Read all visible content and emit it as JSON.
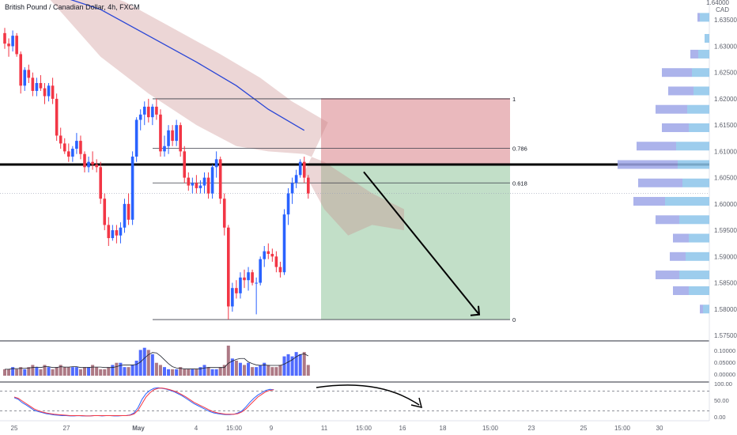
{
  "header": {
    "title": "British Pound / Canadian Dollar, 4h, FXCM",
    "top_price": "1.64000",
    "currency": "CAD"
  },
  "colors": {
    "bull": "#2962ff",
    "bear": "#f23645",
    "ma": "#2a46d6",
    "cloud": "#c98a8a",
    "stop_zone": "#d97f86",
    "target_zone": "#8fc49a",
    "volume_profile_left": "#9ea6e8",
    "volume_profile_right": "#8cc4ea",
    "stoch_k": "#2962ff",
    "stoch_d": "#f23645"
  },
  "chart_data": {
    "type": "candlestick",
    "symbol": "British Pound / Canadian Dollar",
    "timeframe": "4h",
    "source": "FXCM",
    "price_axis": {
      "range": [
        1.575,
        1.64
      ],
      "ticks": [
        "1.63500",
        "1.63000",
        "1.62500",
        "1.62000",
        "1.61500",
        "1.61000",
        "1.60500",
        "1.60000",
        "1.59500",
        "1.59000",
        "1.58500",
        "1.58000",
        "1.57500"
      ]
    },
    "time_axis": [
      "25",
      "27",
      "May",
      "4",
      "15:00",
      "9",
      "11",
      "15:00",
      "16",
      "18",
      "15:00",
      "23",
      "25",
      "15:00",
      "30"
    ],
    "candles": [
      [
        1.6325,
        1.6335,
        1.6295,
        1.6305
      ],
      [
        1.6305,
        1.6315,
        1.628,
        1.63
      ],
      [
        1.63,
        1.633,
        1.629,
        1.632
      ],
      [
        1.632,
        1.6325,
        1.628,
        1.6285
      ],
      [
        1.6285,
        1.629,
        1.621,
        1.6225
      ],
      [
        1.6225,
        1.626,
        1.6215,
        1.6255
      ],
      [
        1.6255,
        1.6265,
        1.623,
        1.624
      ],
      [
        1.624,
        1.625,
        1.6205,
        1.6215
      ],
      [
        1.6215,
        1.624,
        1.6205,
        1.623
      ],
      [
        1.623,
        1.6245,
        1.6215,
        1.622
      ],
      [
        1.622,
        1.623,
        1.619,
        1.6205
      ],
      [
        1.6205,
        1.623,
        1.6195,
        1.6225
      ],
      [
        1.6225,
        1.624,
        1.619,
        1.62
      ],
      [
        1.62,
        1.621,
        1.612,
        1.613
      ],
      [
        1.613,
        1.6145,
        1.6105,
        1.6115
      ],
      [
        1.6115,
        1.6125,
        1.6095,
        1.61
      ],
      [
        1.61,
        1.6115,
        1.608,
        1.609
      ],
      [
        1.609,
        1.611,
        1.608,
        1.6105
      ],
      [
        1.6105,
        1.6135,
        1.6095,
        1.612
      ],
      [
        1.612,
        1.613,
        1.6085,
        1.6095
      ],
      [
        1.6095,
        1.61,
        1.606,
        1.607
      ],
      [
        1.607,
        1.609,
        1.606,
        1.608
      ],
      [
        1.608,
        1.61,
        1.6065,
        1.6075
      ],
      [
        1.6075,
        1.6085,
        1.606,
        1.607
      ],
      [
        1.607,
        1.608,
        1.6,
        1.601
      ],
      [
        1.601,
        1.602,
        1.595,
        1.596
      ],
      [
        1.596,
        1.5975,
        1.592,
        1.5935
      ],
      [
        1.5935,
        1.596,
        1.593,
        1.595
      ],
      [
        1.595,
        1.596,
        1.5925,
        1.594
      ],
      [
        1.594,
        1.5965,
        1.5925,
        1.5955
      ],
      [
        1.5955,
        1.601,
        1.5945,
        1.6
      ],
      [
        1.6,
        1.602,
        1.596,
        1.597
      ],
      [
        1.597,
        1.61,
        1.596,
        1.609
      ],
      [
        1.609,
        1.6165,
        1.608,
        1.616
      ],
      [
        1.616,
        1.618,
        1.614,
        1.617
      ],
      [
        1.617,
        1.6195,
        1.615,
        1.6185
      ],
      [
        1.6185,
        1.62,
        1.6155,
        1.6165
      ],
      [
        1.6165,
        1.619,
        1.615,
        1.6185
      ],
      [
        1.6185,
        1.62,
        1.616,
        1.617
      ],
      [
        1.617,
        1.618,
        1.609,
        1.61
      ],
      [
        1.61,
        1.613,
        1.609,
        1.611
      ],
      [
        1.611,
        1.615,
        1.6095,
        1.614
      ],
      [
        1.614,
        1.615,
        1.611,
        1.612
      ],
      [
        1.612,
        1.616,
        1.611,
        1.615
      ],
      [
        1.615,
        1.6155,
        1.609,
        1.61
      ],
      [
        1.61,
        1.611,
        1.604,
        1.605
      ],
      [
        1.605,
        1.606,
        1.6025,
        1.6035
      ],
      [
        1.6035,
        1.605,
        1.602,
        1.604
      ],
      [
        1.604,
        1.6055,
        1.602,
        1.603
      ],
      [
        1.603,
        1.6045,
        1.602,
        1.6035
      ],
      [
        1.6035,
        1.606,
        1.602,
        1.605
      ],
      [
        1.605,
        1.606,
        1.601,
        1.602
      ],
      [
        1.602,
        1.6075,
        1.601,
        1.607
      ],
      [
        1.607,
        1.61,
        1.605,
        1.6085
      ],
      [
        1.6085,
        1.609,
        1.6,
        1.601
      ],
      [
        1.601,
        1.602,
        1.594,
        1.5955
      ],
      [
        1.5955,
        1.596,
        1.578,
        1.5805
      ],
      [
        1.5805,
        1.585,
        1.5795,
        1.584
      ],
      [
        1.584,
        1.5855,
        1.582,
        1.583
      ],
      [
        1.583,
        1.587,
        1.582,
        1.586
      ],
      [
        1.586,
        1.5875,
        1.584,
        1.5855
      ],
      [
        1.5855,
        1.588,
        1.5835,
        1.587
      ],
      [
        1.587,
        1.5875,
        1.5845,
        1.585
      ],
      [
        1.585,
        1.586,
        1.579,
        1.585
      ],
      [
        1.585,
        1.59,
        1.5845,
        1.5895
      ],
      [
        1.5895,
        1.592,
        1.588,
        1.591
      ],
      [
        1.591,
        1.5925,
        1.5895,
        1.5905
      ],
      [
        1.5905,
        1.5915,
        1.589,
        1.59
      ],
      [
        1.59,
        1.591,
        1.587,
        1.588
      ],
      [
        1.588,
        1.589,
        1.586,
        1.587
      ],
      [
        1.587,
        1.599,
        1.5865,
        1.598
      ],
      [
        1.598,
        1.603,
        1.596,
        1.602
      ],
      [
        1.602,
        1.605,
        1.6,
        1.604
      ],
      [
        1.604,
        1.6065,
        1.603,
        1.6055
      ],
      [
        1.6055,
        1.6085,
        1.605,
        1.608
      ],
      [
        1.608,
        1.609,
        1.604,
        1.605
      ],
      [
        1.605,
        1.6055,
        1.601,
        1.602
      ]
    ],
    "moving_average": [
      [
        0,
        1.642
      ],
      [
        12,
        1.64
      ],
      [
        24,
        1.637
      ],
      [
        36,
        1.632
      ],
      [
        48,
        1.627
      ],
      [
        58,
        1.6225
      ],
      [
        66,
        1.618
      ],
      [
        75,
        1.614
      ]
    ],
    "fib_retracement": {
      "high": 1.62,
      "low": 1.578,
      "levels": [
        {
          "label": "1",
          "price": 1.62
        },
        {
          "label": "0.786",
          "price": 1.6106
        },
        {
          "label": "0.618",
          "price": 1.604
        },
        {
          "label": "0",
          "price": 1.578
        }
      ]
    },
    "horizontal_level": 1.6075,
    "short_position": {
      "entry": 1.6075,
      "stop": 1.62,
      "target": 1.578
    },
    "projection_arrow": {
      "from": 1.607,
      "to": 1.5785
    },
    "volume_profile": [
      {
        "price": 1.6355,
        "left": 3,
        "right": 12
      },
      {
        "price": 1.6315,
        "left": 0,
        "right": 6
      },
      {
        "price": 1.6285,
        "left": 10,
        "right": 14
      },
      {
        "price": 1.625,
        "left": 38,
        "right": 22
      },
      {
        "price": 1.6215,
        "left": 32,
        "right": 20
      },
      {
        "price": 1.618,
        "left": 40,
        "right": 28
      },
      {
        "price": 1.6145,
        "left": 34,
        "right": 26
      },
      {
        "price": 1.611,
        "left": 50,
        "right": 42
      },
      {
        "price": 1.6075,
        "left": 76,
        "right": 40
      },
      {
        "price": 1.604,
        "left": 56,
        "right": 34
      },
      {
        "price": 1.6005,
        "left": 40,
        "right": 56
      },
      {
        "price": 1.597,
        "left": 30,
        "right": 38
      },
      {
        "price": 1.5935,
        "left": 20,
        "right": 26
      },
      {
        "price": 1.59,
        "left": 20,
        "right": 30
      },
      {
        "price": 1.5865,
        "left": 30,
        "right": 38
      },
      {
        "price": 1.5835,
        "left": 20,
        "right": 26
      },
      {
        "price": 1.58,
        "left": 4,
        "right": 8
      }
    ],
    "volume": {
      "axis_ticks": [
        "0.10000",
        "0.05000",
        "0.00000"
      ],
      "values": [
        3,
        3,
        4,
        3,
        4,
        3,
        4,
        5,
        4,
        3,
        5,
        4,
        3,
        4,
        5,
        4,
        4,
        4,
        4,
        3,
        4,
        4,
        5,
        4,
        3,
        3,
        4,
        5,
        6,
        6,
        4,
        4,
        5,
        7,
        12,
        13,
        12,
        10,
        6,
        5,
        4,
        3,
        3,
        3,
        4,
        3,
        3,
        3,
        3,
        4,
        5,
        4,
        3,
        3,
        4,
        5,
        14,
        8,
        7,
        6,
        5,
        6,
        4,
        4,
        5,
        6,
        5,
        4,
        4,
        5,
        9,
        10,
        9,
        11,
        10,
        11,
        5
      ]
    },
    "stochastic": {
      "axis_ticks": [
        "100.00",
        "50.00",
        "0.00"
      ],
      "k": [
        60,
        55,
        45,
        38,
        30,
        22,
        18,
        15,
        12,
        10,
        8,
        7,
        6,
        6,
        5,
        5,
        6,
        5,
        5,
        5,
        6,
        6,
        5,
        6,
        6,
        5,
        5,
        6,
        6,
        8,
        14,
        30,
        55,
        72,
        82,
        88,
        90,
        88,
        86,
        82,
        78,
        72,
        66,
        58,
        50,
        42,
        36,
        30,
        24,
        18,
        14,
        12,
        10,
        9,
        9,
        10,
        14,
        20,
        32,
        46,
        58,
        68,
        75,
        82,
        85,
        84
      ],
      "d": [
        62,
        58,
        50,
        42,
        34,
        26,
        21,
        17,
        14,
        12,
        10,
        9,
        8,
        7,
        6,
        6,
        6,
        6,
        5,
        5,
        6,
        6,
        6,
        6,
        6,
        6,
        6,
        6,
        6,
        7,
        11,
        22,
        42,
        62,
        75,
        84,
        88,
        89,
        87,
        84,
        80,
        75,
        69,
        62,
        54,
        46,
        40,
        34,
        28,
        22,
        17,
        14,
        12,
        10,
        10,
        10,
        12,
        17,
        26,
        38,
        50,
        62,
        70,
        78,
        82,
        84
      ]
    }
  }
}
